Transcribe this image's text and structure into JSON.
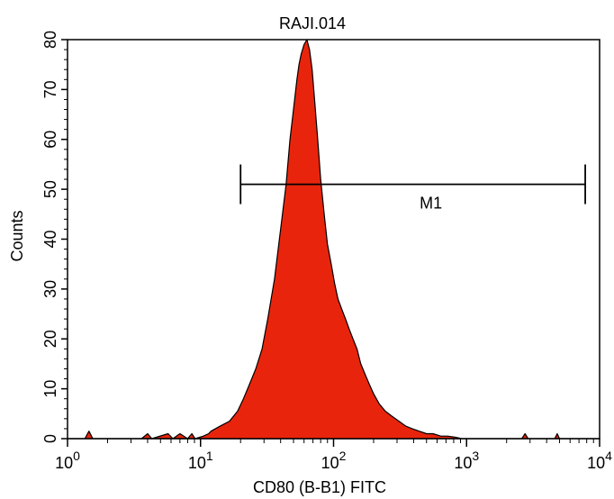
{
  "chart_data": {
    "type": "area",
    "title": "RAJI.014",
    "xlabel": "CD80 (B-B1) FITC",
    "ylabel": "Counts",
    "x_scale": "log",
    "xlim": [
      1,
      10000
    ],
    "ylim": [
      0,
      80
    ],
    "x_ticks": [
      {
        "value": 1,
        "base": "10",
        "exp": "0"
      },
      {
        "value": 10,
        "base": "10",
        "exp": "1"
      },
      {
        "value": 100,
        "base": "10",
        "exp": "2"
      },
      {
        "value": 1000,
        "base": "10",
        "exp": "3"
      },
      {
        "value": 10000,
        "base": "10",
        "exp": "4"
      }
    ],
    "y_ticks": [
      "0",
      "10",
      "20",
      "30",
      "40",
      "50",
      "60",
      "70",
      "80"
    ],
    "fill_color": "#e8250c",
    "grid": false,
    "series": [
      {
        "x": [
          1,
          1.35,
          1.45,
          1.55,
          3.6,
          4.0,
          4.3,
          5.7,
          6.2,
          7.0,
          8.0,
          8.6,
          9.1,
          10.5,
          11.5,
          12.0,
          14.0,
          16.5,
          19.0,
          21.0,
          23.0,
          26.0,
          29.0,
          32.0,
          36.0,
          40.0,
          44.0,
          47.0,
          50.0,
          53.0,
          55.0,
          57.0,
          60.0,
          63.0,
          66.0,
          69.0,
          72.0,
          76.0,
          80.0,
          85.0,
          90.0,
          96.0,
          102.0,
          108.0,
          115.0,
          123.0,
          131.0,
          140.0,
          150.0,
          160.0,
          172.0,
          185.0,
          200.0,
          220.0,
          245.0,
          275.0,
          310.0,
          350.0,
          390.0,
          440.0,
          500.0,
          560.0,
          640.0,
          720.0,
          820.0,
          920.0,
          1050.0,
          1200.0,
          1400.0,
          1700.0,
          2100.0,
          2600.0,
          2750.0,
          2900.0,
          3500.0,
          4600.0,
          4800.0,
          5000.0,
          6500.0,
          8500.0,
          10000
        ],
        "y": [
          0,
          0,
          1.5,
          0,
          0,
          1,
          0,
          1,
          0,
          1,
          0,
          1,
          0,
          0.5,
          1,
          1.5,
          2.5,
          3.5,
          5.5,
          8,
          10.5,
          14,
          18,
          24,
          32,
          42,
          51,
          60,
          66,
          72,
          75,
          77,
          79,
          80,
          78,
          74,
          68,
          60,
          52,
          45,
          39,
          35,
          31,
          28,
          26,
          24,
          22,
          20,
          18,
          15,
          13,
          11,
          9,
          7,
          5.5,
          4.5,
          3.5,
          2.5,
          2,
          1.5,
          1,
          1,
          0.5,
          0.5,
          0.3,
          0,
          0,
          0,
          0,
          0,
          0,
          0,
          1,
          0,
          0,
          0,
          1,
          0,
          0,
          0,
          0
        ]
      }
    ],
    "markers": [
      {
        "label": "M1",
        "x_start": 20,
        "x_end": 7800,
        "y": 51
      }
    ]
  }
}
